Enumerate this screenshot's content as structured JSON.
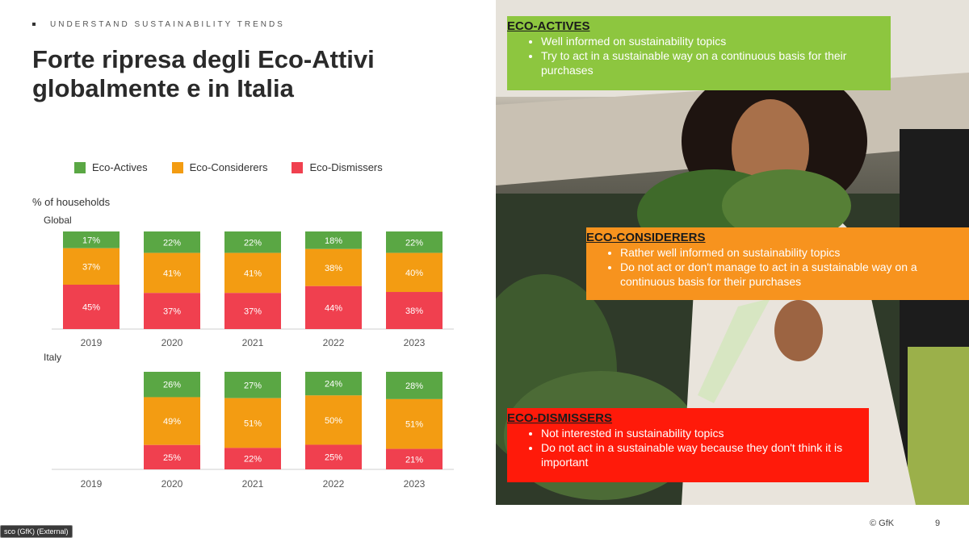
{
  "header": {
    "kicker": "UNDERSTAND SUSTAINABILITY TRENDS",
    "title_line1": "Forte ripresa degli Eco-Attivi",
    "title_line2": "globalmente e in Italia"
  },
  "colors": {
    "actives": "#5aa744",
    "considerers": "#f39c12",
    "dismissers": "#f0404f"
  },
  "chart_data": {
    "type": "bar",
    "stacked": true,
    "ylabel": "% of households",
    "legend": [
      "Eco-Actives",
      "Eco-Considerers",
      "Eco-Dismissers"
    ],
    "legend_placement": "top",
    "categories": [
      "2019",
      "2020",
      "2021",
      "2022",
      "2023"
    ],
    "panels": [
      {
        "name": "Global",
        "series": [
          {
            "name": "Eco-Actives",
            "values": [
              17,
              22,
              22,
              18,
              22
            ],
            "labels": [
              "17%",
              "22%",
              "22%",
              "18%",
              "22%"
            ]
          },
          {
            "name": "Eco-Considerers",
            "values": [
              37,
              41,
              41,
              38,
              40
            ],
            "labels": [
              "37%",
              "41%",
              "41%",
              "38%",
              "40%"
            ]
          },
          {
            "name": "Eco-Dismissers",
            "values": [
              45,
              37,
              37,
              44,
              38
            ],
            "labels": [
              "45%",
              "37%",
              "37%",
              "44%",
              "38%"
            ]
          }
        ]
      },
      {
        "name": "Italy",
        "series": [
          {
            "name": "Eco-Actives",
            "values": [
              null,
              26,
              27,
              24,
              28
            ],
            "labels": [
              "",
              "26%",
              "27%",
              "24%",
              "28%"
            ]
          },
          {
            "name": "Eco-Considerers",
            "values": [
              null,
              49,
              51,
              50,
              51
            ],
            "labels": [
              "",
              "49%",
              "51%",
              "50%",
              "51%"
            ]
          },
          {
            "name": "Eco-Dismissers",
            "values": [
              null,
              25,
              22,
              25,
              21
            ],
            "labels": [
              "",
              "25%",
              "22%",
              "25%",
              "21%"
            ]
          }
        ]
      }
    ]
  },
  "segments": {
    "actives": {
      "heading": "ECO-ACTIVES",
      "points": [
        "Well informed on sustainability topics",
        "Try to act in a sustainable way on a continuous basis for their purchases"
      ]
    },
    "considerers": {
      "heading": "ECO-CONSIDERERS",
      "points": [
        "Rather well informed on sustainability topics",
        "Do not act or don't manage to act in a sustainable way on a continuous basis for their purchases"
      ]
    },
    "dismissers": {
      "heading": "ECO-DISMISSERS",
      "points": [
        "Not interested in sustainability topics",
        "Do not act in a sustainable way because they don't think it is important"
      ]
    }
  },
  "footer": {
    "copyright": "© GfK",
    "page": "9",
    "presenter_tag": "sco (GfK) (External)"
  }
}
